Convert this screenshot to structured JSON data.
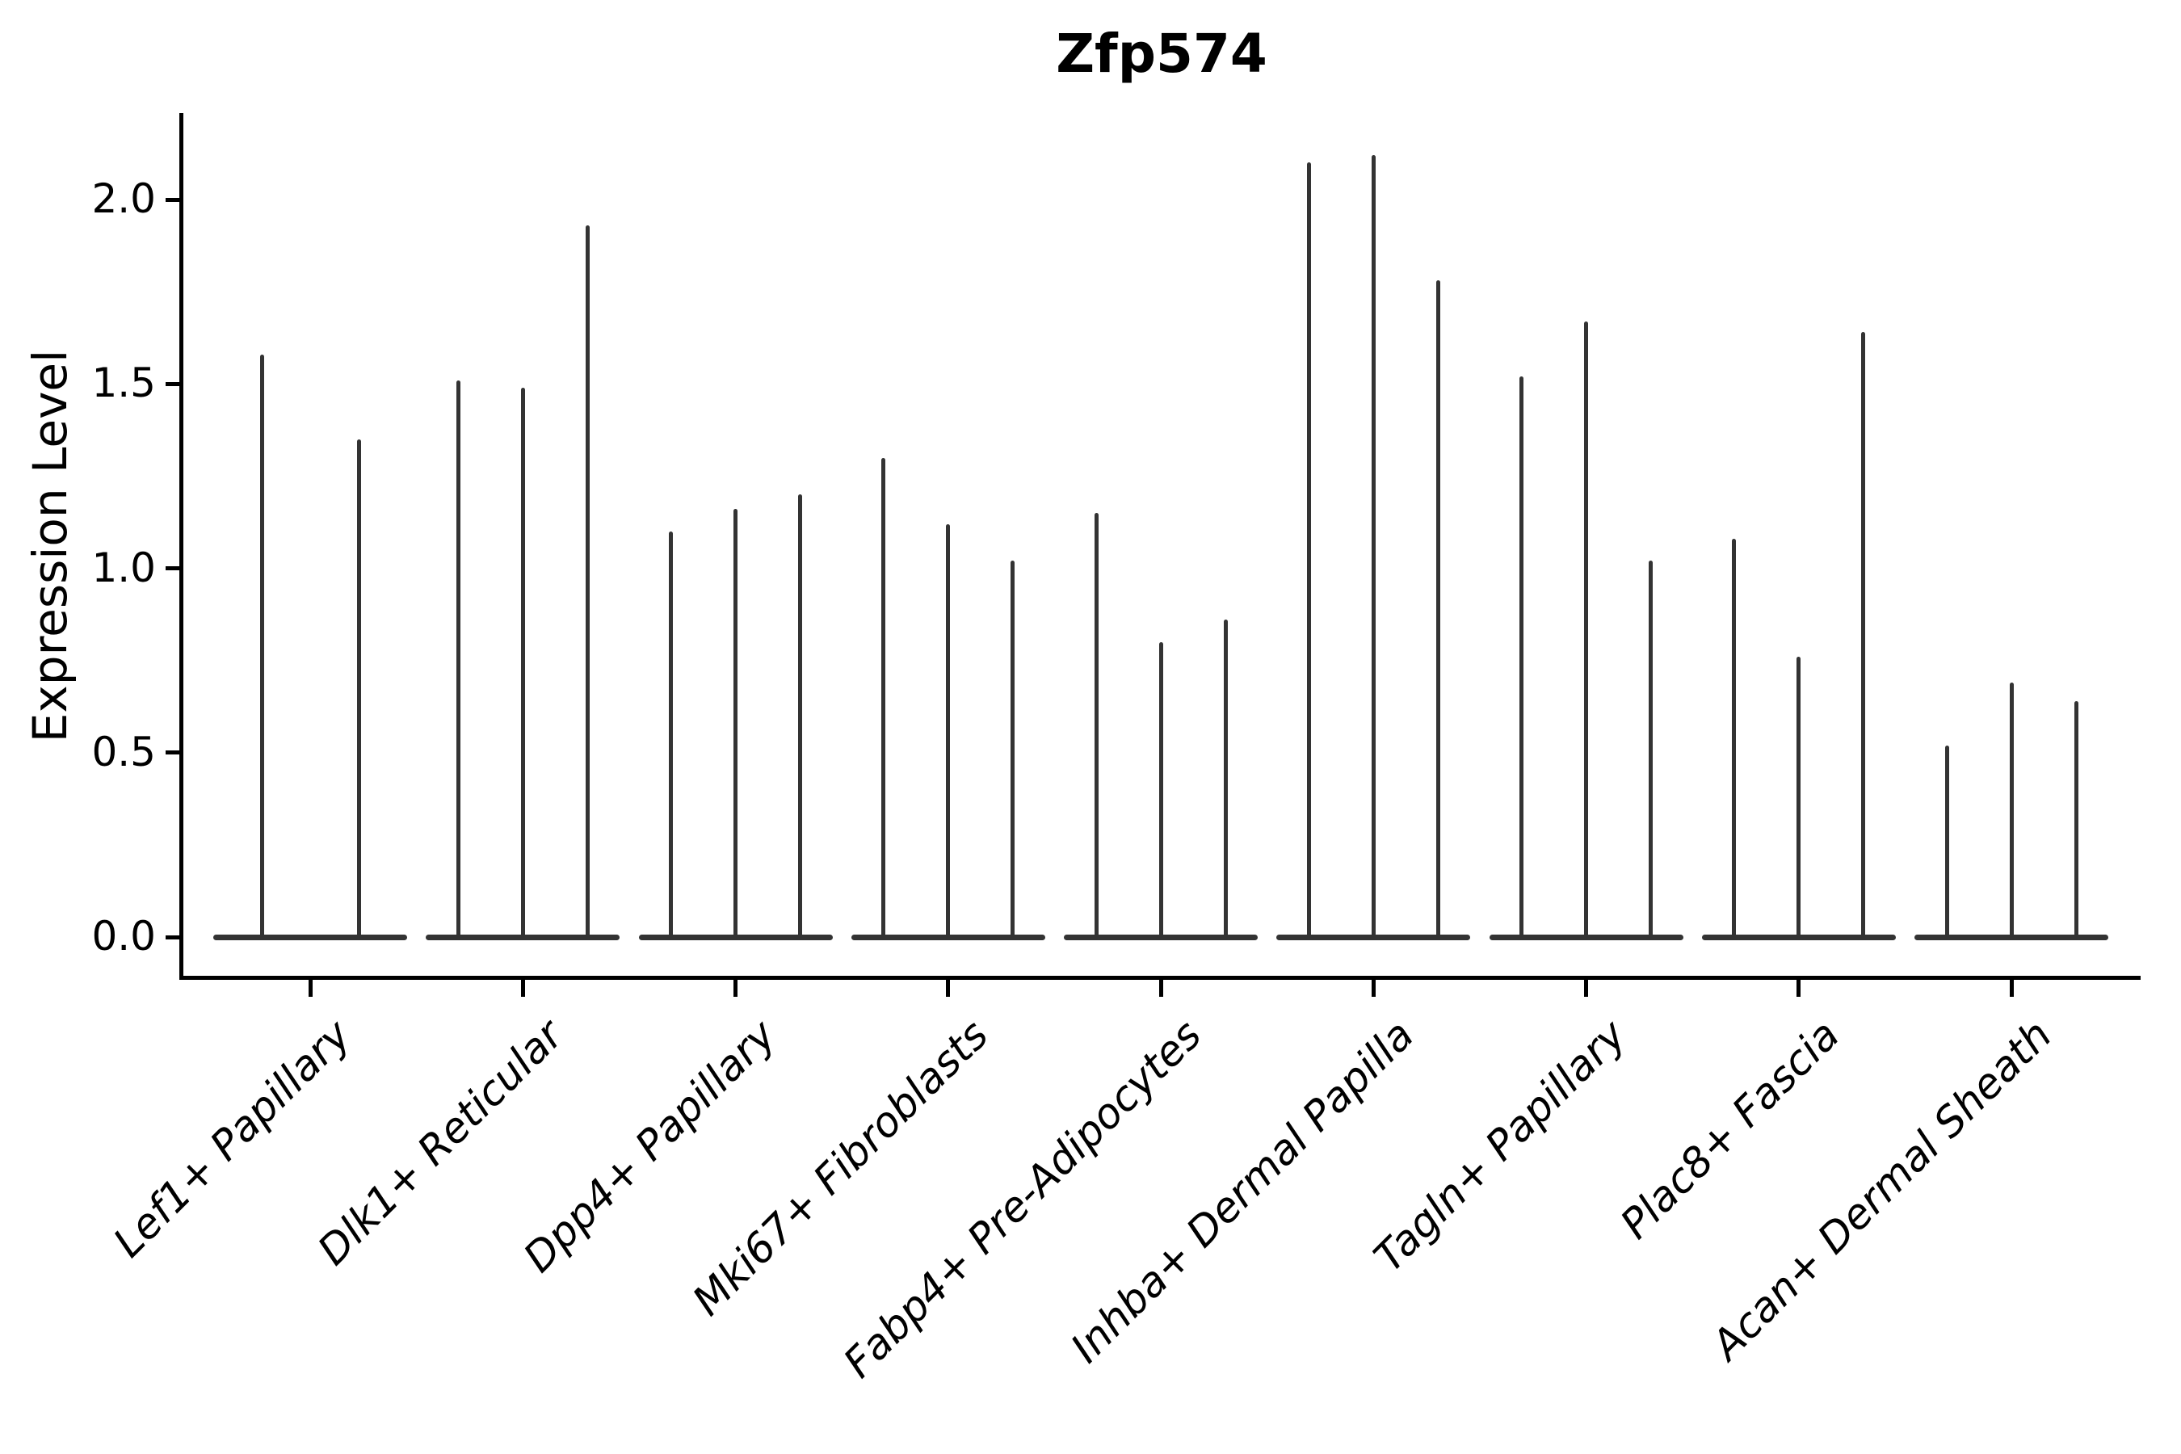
{
  "chart_data": {
    "type": "violin",
    "title": "Zfp574",
    "ylabel": "Expression Level",
    "xlabel": "",
    "ytick_labels": [
      "0.0",
      "0.5",
      "1.0",
      "1.5",
      "2.0"
    ],
    "ytick_values": [
      0.0,
      0.5,
      1.0,
      1.5,
      2.0
    ],
    "ylim": [
      -0.11,
      2.23
    ],
    "grid": false,
    "legend": "none",
    "style_note": "thin spike violins: density mass flattened at 0 with narrow line up to max expression per violin",
    "categories": [
      "Lef1+ Papillary",
      "Dlk1+ Reticular",
      "Dpp4+ Papillary",
      "Mki67+ Fibroblasts",
      "Fabp4+ Pre-Adipocytes",
      "Inhba+ Dermal Papilla",
      "Tagln+ Papillary",
      "Plac8+ Fascia",
      "Acan+ Dermal Sheath"
    ],
    "groups": [
      {
        "category": "Lef1+ Papillary",
        "violin_max_expression": [
          1.58,
          1.35
        ]
      },
      {
        "category": "Dlk1+ Reticular",
        "violin_max_expression": [
          1.51,
          1.49,
          1.93
        ]
      },
      {
        "category": "Dpp4+ Papillary",
        "violin_max_expression": [
          1.1,
          1.16,
          1.2
        ]
      },
      {
        "category": "Mki67+ Fibroblasts",
        "violin_max_expression": [
          1.3,
          1.12,
          1.02
        ]
      },
      {
        "category": "Fabp4+ Pre-Adipocytes",
        "violin_max_expression": [
          1.15,
          0.8,
          0.86
        ]
      },
      {
        "category": "Inhba+ Dermal Papilla",
        "violin_max_expression": [
          2.1,
          2.12,
          1.78
        ]
      },
      {
        "category": "Tagln+ Papillary",
        "violin_max_expression": [
          1.52,
          1.67,
          1.02
        ]
      },
      {
        "category": "Plac8+ Fascia",
        "violin_max_expression": [
          1.08,
          0.76,
          1.64
        ]
      },
      {
        "category": "Acan+ Dermal Sheath",
        "violin_max_expression": [
          0.52,
          0.69,
          0.64
        ]
      }
    ],
    "colors": {
      "violin": "#333333",
      "axis": "#000000",
      "background": "#ffffff"
    }
  }
}
